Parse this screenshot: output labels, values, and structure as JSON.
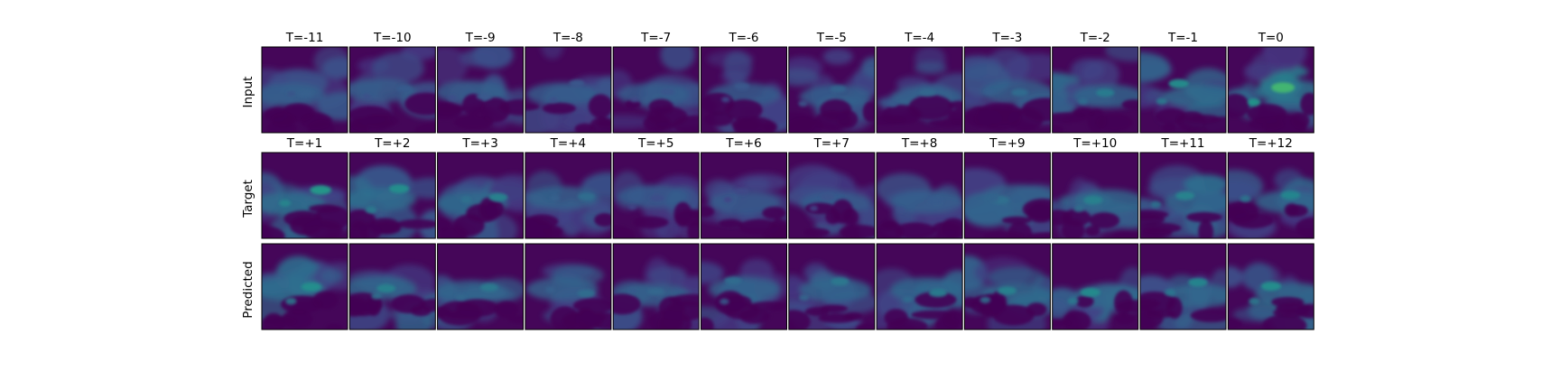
{
  "chart_data": {
    "type": "heatmap",
    "colormap": "viridis",
    "grid": false,
    "rows": [
      {
        "label": "Input",
        "titles": [
          "T=-11",
          "T=-10",
          "T=-9",
          "T=-8",
          "T=-7",
          "T=-6",
          "T=-5",
          "T=-4",
          "T=-3",
          "T=-2",
          "T=-1",
          "T=0"
        ],
        "intensity": [
          0.38,
          0.36,
          0.35,
          0.34,
          0.33,
          0.34,
          0.4,
          0.42,
          0.44,
          0.52,
          0.62,
          0.8
        ]
      },
      {
        "label": "Target",
        "titles": [
          "T=+1",
          "T=+2",
          "T=+3",
          "T=+4",
          "T=+5",
          "T=+6",
          "T=+7",
          "T=+8",
          "T=+9",
          "T=+10",
          "T=+11",
          "T=+12"
        ],
        "intensity": [
          0.68,
          0.62,
          0.55,
          0.45,
          0.3,
          0.28,
          0.32,
          0.36,
          0.46,
          0.55,
          0.56,
          0.58
        ]
      },
      {
        "label": "Predicted",
        "titles": [
          "",
          "",
          "",
          "",
          "",
          "",
          "",
          "",
          "",
          "",
          "",
          ""
        ],
        "intensity": [
          0.62,
          0.55,
          0.5,
          0.45,
          0.42,
          0.44,
          0.5,
          0.52,
          0.55,
          0.6,
          0.58,
          0.62
        ]
      }
    ]
  }
}
